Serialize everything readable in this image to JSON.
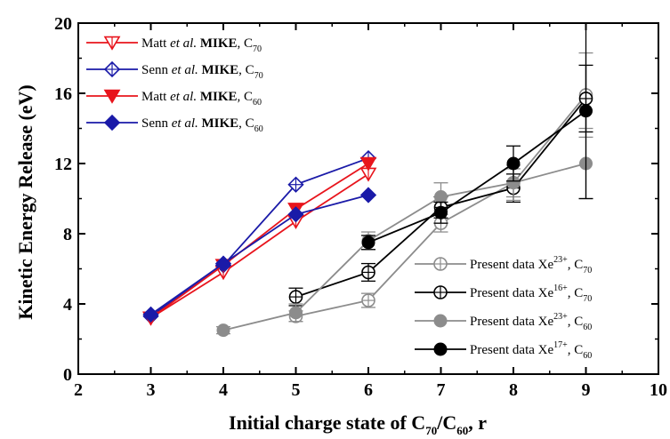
{
  "chart_data": {
    "type": "line",
    "xlabel": "Initial charge state of C70/C60,  r",
    "xlabel_parts": {
      "pre": "Initial charge state of C",
      "sub1": "70",
      "mid": "/C",
      "sub2": "60",
      "post": ",  r"
    },
    "ylabel": "Kinetic Energy Release  (eV)",
    "xlim": [
      2,
      10
    ],
    "ylim": [
      0,
      20
    ],
    "xticks": [
      2,
      3,
      4,
      5,
      6,
      7,
      8,
      9,
      10
    ],
    "yticks": [
      0,
      4,
      8,
      12,
      16,
      20
    ],
    "xtick_labels": [
      "2",
      "3",
      "4",
      "5",
      "6",
      "7",
      "8",
      "9",
      "10"
    ],
    "ytick_labels": [
      "0",
      "4",
      "8",
      "12",
      "16",
      "20"
    ],
    "grid": false,
    "series": [
      {
        "name": "Matt et al. MIKE, C70",
        "legend": {
          "pre": "Matt ",
          "ital": "et al.",
          "bold": " MIKE",
          "post": ", C",
          "sub": "70",
          "sup": ""
        },
        "color": "#e8141c",
        "marker": "triangle-down-open",
        "x": [
          3,
          4,
          5,
          6
        ],
        "y": [
          3.2,
          5.8,
          8.7,
          11.4
        ]
      },
      {
        "name": "Senn et al. MIKE, C70",
        "legend": {
          "pre": " Senn ",
          "ital": "et al.",
          "bold": " MIKE",
          "post": ", C",
          "sub": "70",
          "sup": ""
        },
        "color": "#1a1aa8",
        "marker": "diamond-cross-open",
        "x": [
          3,
          4,
          5,
          6
        ],
        "y": [
          3.3,
          6.2,
          10.8,
          12.3
        ]
      },
      {
        "name": "Matt et al. MIKE, C60",
        "legend": {
          "pre": "Matt ",
          "ital": "et al.",
          "bold": " MIKE",
          "post": ", C",
          "sub": "60",
          "sup": ""
        },
        "color": "#e8141c",
        "marker": "triangle-down-filled",
        "x": [
          3,
          4,
          5,
          6
        ],
        "y": [
          3.2,
          6.2,
          9.4,
          12.0
        ]
      },
      {
        "name": "Senn et al. MIKE, C60",
        "legend": {
          "pre": "Senn ",
          "ital": "et al.",
          "bold": " MIKE",
          "post": ", C",
          "sub": "60",
          "sup": ""
        },
        "color": "#1a1aa8",
        "marker": "diamond-filled",
        "x": [
          3,
          4,
          5,
          6
        ],
        "y": [
          3.4,
          6.3,
          9.1,
          10.2
        ]
      },
      {
        "name": "Present data Xe23+, C70",
        "legend": {
          "pre": "Present data Xe",
          "ital": "",
          "bold": "",
          "post": ", C",
          "sub": "70",
          "sup": "23+"
        },
        "color": "#8c8c8c",
        "marker": "circle-cross-open",
        "x": [
          5,
          6,
          7,
          8,
          9
        ],
        "y": [
          3.3,
          4.2,
          8.6,
          10.9,
          15.9
        ],
        "err": [
          0.3,
          0.4,
          0.5,
          0.8,
          2.4
        ]
      },
      {
        "name": "Present data Xe16+, C70",
        "legend": {
          "pre": "Present data Xe",
          "ital": "",
          "bold": "",
          "post": ", C",
          "sub": "70",
          "sup": "16+"
        },
        "color": "#000000",
        "marker": "circle-cross-open",
        "x": [
          5,
          6,
          7,
          8,
          9
        ],
        "y": [
          4.4,
          5.8,
          9.5,
          10.6,
          15.7
        ],
        "err": [
          0.5,
          0.5,
          0.6,
          0.8,
          1.9
        ]
      },
      {
        "name": "Present data Xe23+, C60",
        "legend": {
          "pre": "Present data Xe",
          "ital": "",
          "bold": "",
          "post": ", C",
          "sub": "60",
          "sup": "23+"
        },
        "color": "#8c8c8c",
        "marker": "circle-filled",
        "x": [
          4,
          5,
          6,
          7,
          8,
          9
        ],
        "y": [
          2.5,
          3.5,
          7.6,
          10.1,
          10.9,
          12.0
        ],
        "err": [
          0.2,
          0.5,
          0.5,
          0.8,
          1.0,
          2.0
        ]
      },
      {
        "name": "Present data Xe17+, C60",
        "legend": {
          "pre": "Present data Xe",
          "ital": "",
          "bold": "",
          "post": ", C",
          "sub": "60",
          "sup": "17+"
        },
        "color": "#000000",
        "marker": "circle-filled",
        "x": [
          6,
          7,
          8,
          9
        ],
        "y": [
          7.5,
          9.2,
          12.0,
          15.0
        ],
        "err": [
          0.4,
          0.6,
          1.0,
          5.0
        ]
      }
    ]
  }
}
